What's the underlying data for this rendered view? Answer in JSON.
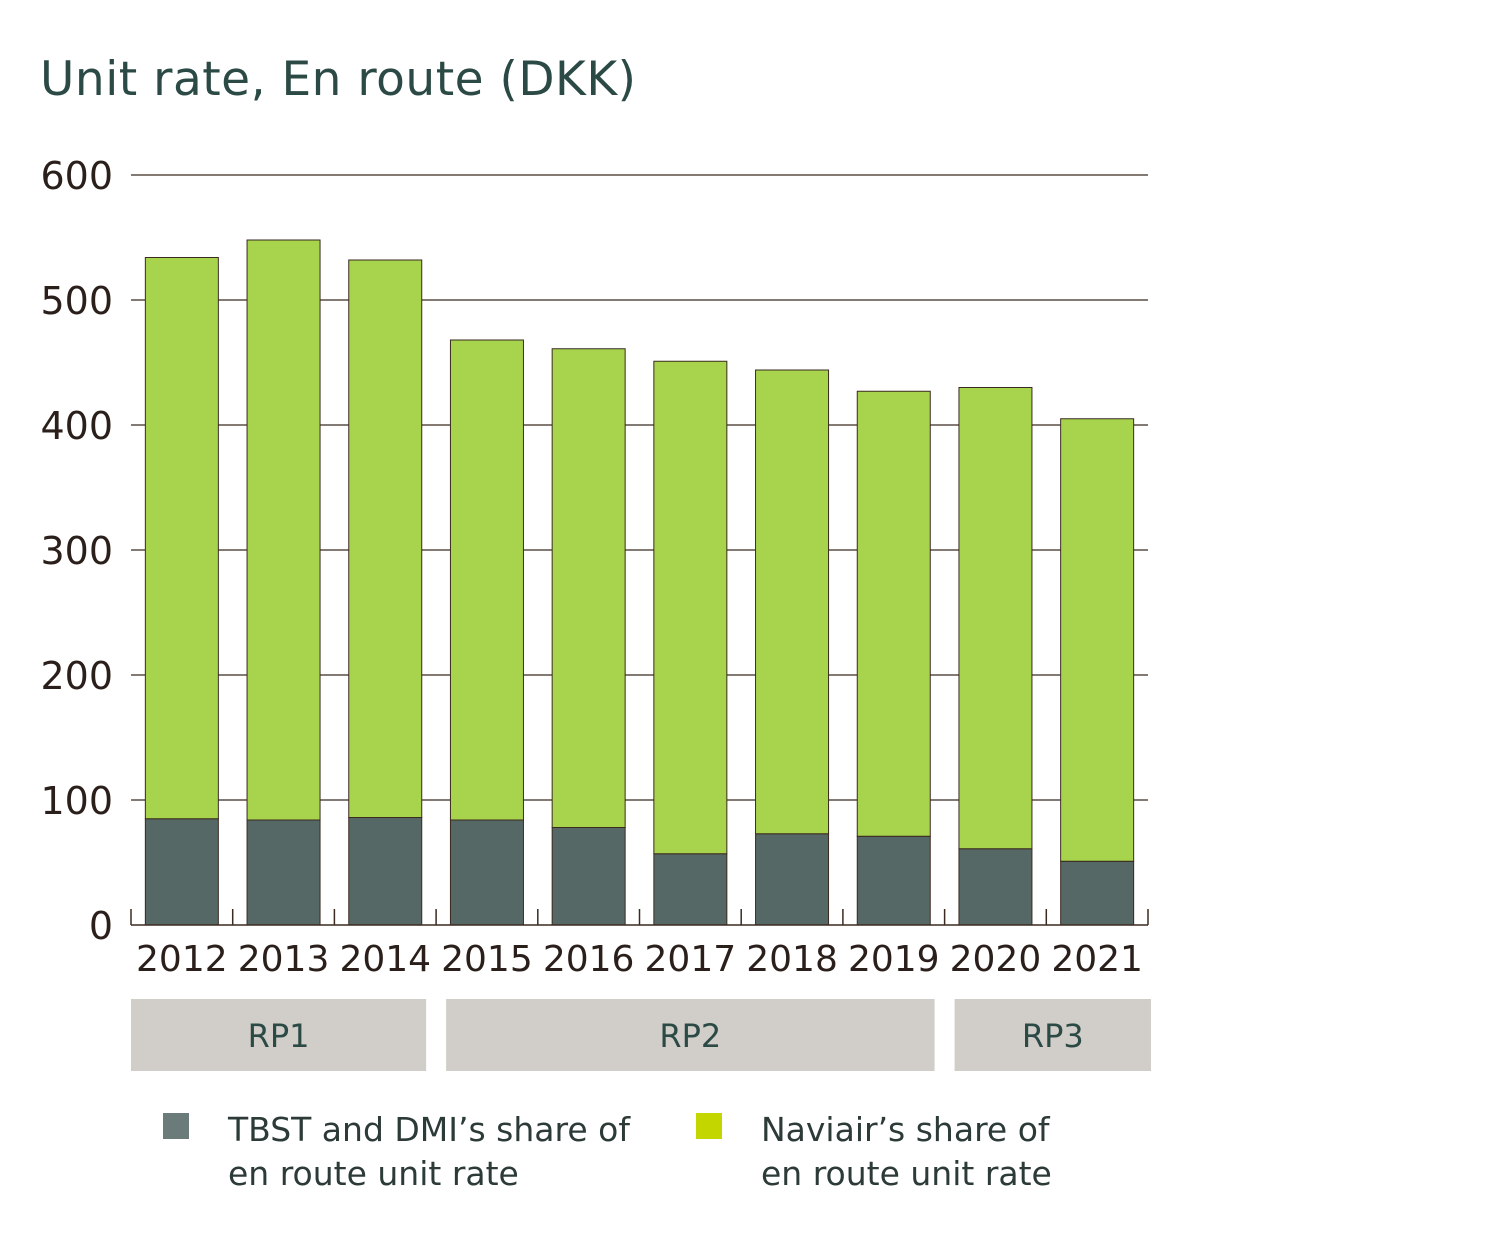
{
  "chart_data": {
    "type": "bar",
    "stacked": true,
    "title": "Unit rate, En route (DKK)",
    "xlabel": "",
    "ylabel": "",
    "ylim": [
      0,
      600
    ],
    "yticks": [
      "0",
      "100",
      "200",
      "300",
      "400",
      "500",
      "600"
    ],
    "grid": true,
    "categories": [
      "2012",
      "2013",
      "2014",
      "2015",
      "2016",
      "2017",
      "2018",
      "2019",
      "2020",
      "2021"
    ],
    "series": [
      {
        "name": "TBST and DMI’s share of en route unit rate",
        "color": "#566865",
        "values": [
          85,
          84,
          86,
          84,
          78,
          57,
          73,
          71,
          61,
          51
        ]
      },
      {
        "name": "Naviair’s share of en route unit rate",
        "color": "#a8d44d",
        "values": [
          449,
          464,
          446,
          384,
          383,
          394,
          371,
          356,
          369,
          354
        ]
      }
    ],
    "periods": [
      {
        "label": "RP1",
        "years": [
          "2012",
          "2014"
        ]
      },
      {
        "label": "RP2",
        "years": [
          "2015",
          "2019"
        ]
      },
      {
        "label": "RP3",
        "years": [
          "2020",
          "2021"
        ]
      }
    ],
    "legend": {
      "placement": "bottom",
      "items": [
        {
          "line1": "TBST and DMI’s share of",
          "line2": "en route unit rate",
          "color": "#6b7b79"
        },
        {
          "line1": "Naviair’s share of",
          "line2": "en route unit rate",
          "color": "#c4d600"
        }
      ]
    }
  }
}
